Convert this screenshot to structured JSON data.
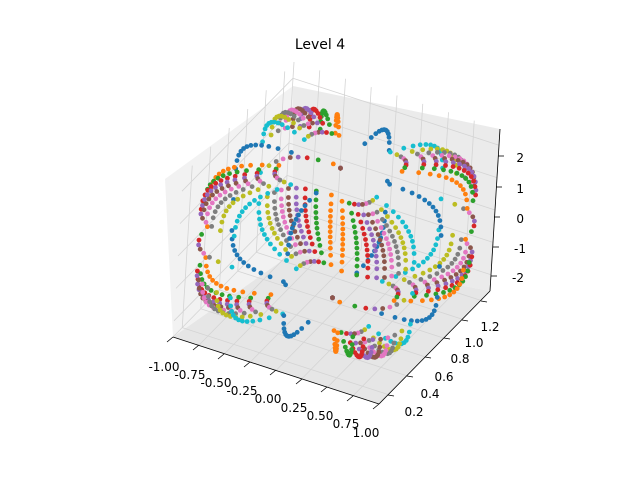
{
  "chart_data": {
    "type": "scatter",
    "projection": "3d",
    "title": "Level 4",
    "xlabel": "",
    "ylabel": "",
    "zlabel": "",
    "xlim": [
      -1.0,
      1.0
    ],
    "ylim": [
      0.1,
      1.3
    ],
    "zlim": [
      -2.5,
      2.5
    ],
    "x_ticks": [
      "-1.00",
      "-0.75",
      "-0.50",
      "-0.25",
      "0.00",
      "0.25",
      "0.50",
      "0.75",
      "1.00"
    ],
    "y_ticks": [
      "0.2",
      "0.4",
      "0.6",
      "0.8",
      "1.0",
      "1.2"
    ],
    "z_ticks": [
      "-2",
      "-1",
      "0",
      "1",
      "2"
    ],
    "grid": true,
    "legend": "none",
    "surface": {
      "shape": "rounded box shell sampled by many point series",
      "x_range": [
        -1.0,
        1.0
      ],
      "y_range": [
        0.15,
        1.25
      ],
      "z_range": [
        -2.0,
        2.0
      ],
      "series_count": 40
    },
    "colors": [
      "#1f77b4",
      "#ff7f0e",
      "#2ca02c",
      "#d62728",
      "#9467bd",
      "#8c564b",
      "#e377c2",
      "#7f7f7f",
      "#bcbd22",
      "#17becf"
    ]
  }
}
